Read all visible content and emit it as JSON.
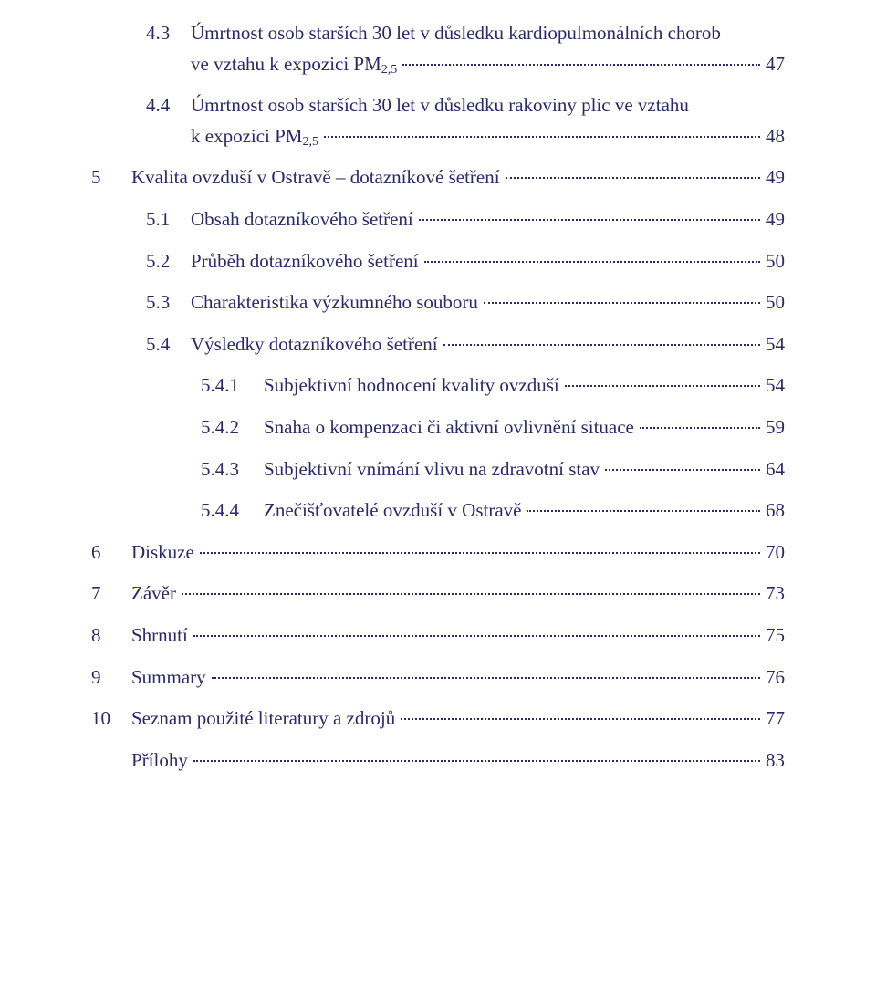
{
  "text_color": "#2a2a6a",
  "toc": [
    {
      "level": 1,
      "num": "4.3",
      "text_a": "Úmrtnost osob starších 30 let v důsledku kardiopulmonálních chorob",
      "text_b": "ve vztahu k expozici PM",
      "sub_b": "2,5",
      "page": "47",
      "multiline": true
    },
    {
      "level": 1,
      "num": "4.4",
      "text_a": "Úmrtnost osob starších 30 let v důsledku rakoviny plic ve vztahu",
      "text_b": "k expozici PM",
      "sub_b": "2,5",
      "page": "48",
      "multiline": true
    },
    {
      "level": 0,
      "num": "5",
      "text": "Kvalita ovzduší v Ostravě – dotazníkové šetření",
      "page": "49"
    },
    {
      "level": 1,
      "num": "5.1",
      "text": "Obsah dotazníkového šetření",
      "page": "49"
    },
    {
      "level": 1,
      "num": "5.2",
      "text": "Průběh dotazníkového šetření",
      "page": "50"
    },
    {
      "level": 1,
      "num": "5.3",
      "text": "Charakteristika výzkumného souboru",
      "page": "50"
    },
    {
      "level": 1,
      "num": "5.4",
      "text": "Výsledky dotazníkového šetření",
      "page": "54"
    },
    {
      "level": 2,
      "num": "5.4.1",
      "text": "Subjektivní hodnocení kvality ovzduší",
      "page": "54"
    },
    {
      "level": 2,
      "num": "5.4.2",
      "text": "Snaha o kompenzaci či aktivní ovlivnění situace",
      "page": "59"
    },
    {
      "level": 2,
      "num": "5.4.3",
      "text": "Subjektivní vnímání vlivu na zdravotní stav",
      "page": "64"
    },
    {
      "level": 2,
      "num": "5.4.4",
      "text": "Znečišťovatelé ovzduší v Ostravě",
      "page": "68"
    },
    {
      "level": 0,
      "num": "6",
      "text": "Diskuze",
      "page": "70"
    },
    {
      "level": 0,
      "num": "7",
      "text": "Závěr",
      "page": "73"
    },
    {
      "level": 0,
      "num": "8",
      "text": "Shrnutí",
      "page": "75"
    },
    {
      "level": 0,
      "num": "9",
      "text": "Summary",
      "page": "76"
    },
    {
      "level": 0,
      "num": "10",
      "text": "Seznam použité literatury a zdrojů",
      "page": "77"
    },
    {
      "level": 0,
      "num": "",
      "text": "Přílohy",
      "page": "83"
    }
  ]
}
